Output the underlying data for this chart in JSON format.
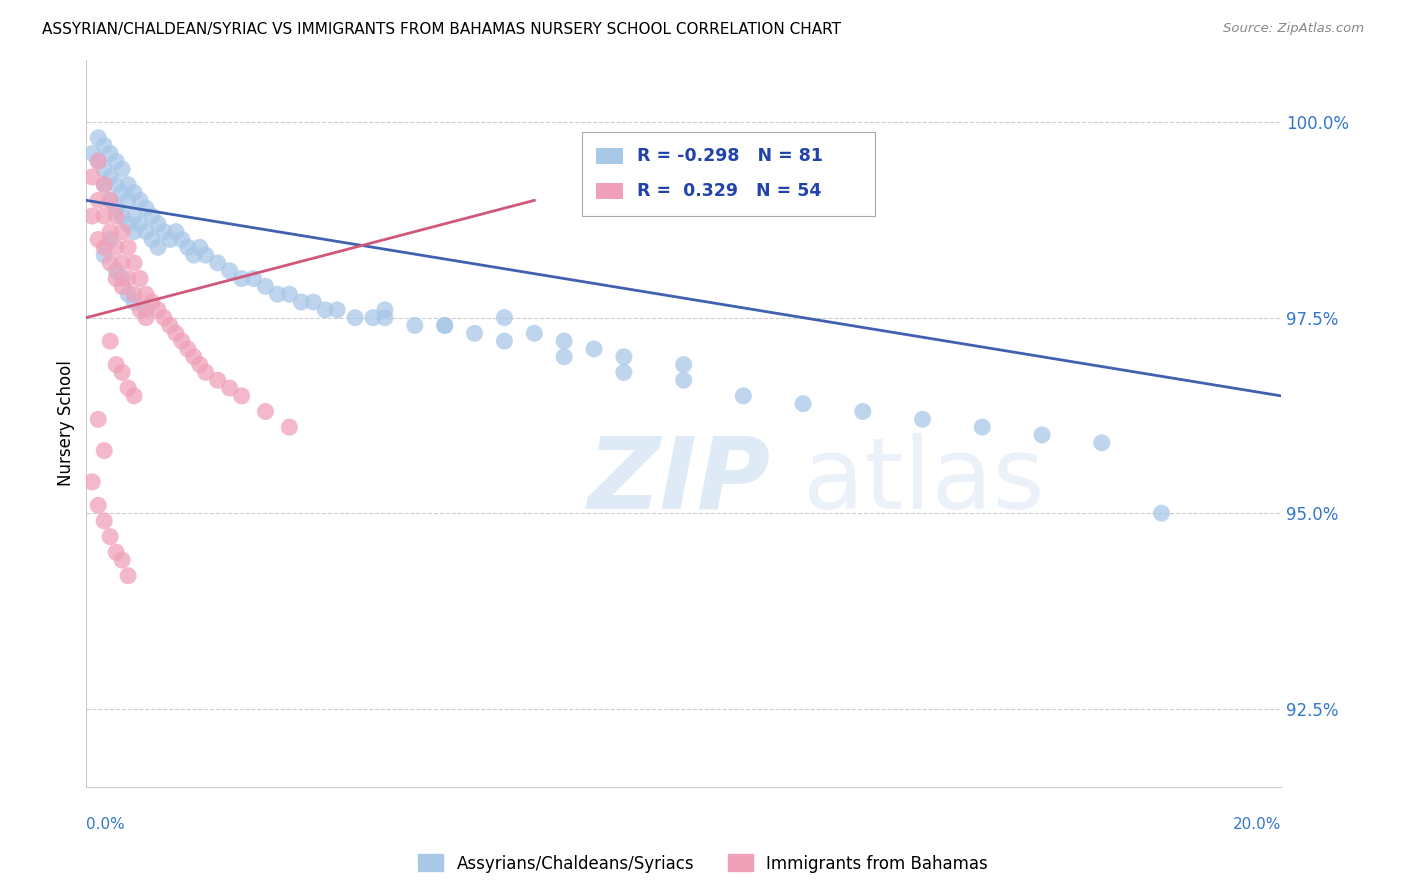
{
  "title": "ASSYRIAN/CHALDEAN/SYRIAC VS IMMIGRANTS FROM BAHAMAS NURSERY SCHOOL CORRELATION CHART",
  "source": "Source: ZipAtlas.com",
  "ylabel": "Nursery School",
  "y_ticks": [
    92.5,
    95.0,
    97.5,
    100.0
  ],
  "x_min": 0.0,
  "x_max": 0.2,
  "y_min": 91.5,
  "y_max": 100.8,
  "blue_R": -0.298,
  "blue_N": 81,
  "pink_R": 0.329,
  "pink_N": 54,
  "blue_color": "#a8c8e8",
  "pink_color": "#f0a0b8",
  "blue_line_color": "#4060b0",
  "pink_line_color": "#d05878",
  "legend_R_color": "#2244aa",
  "blue_line_x0": 0.0,
  "blue_line_y0": 99.0,
  "blue_line_x1": 0.2,
  "blue_line_y1": 96.5,
  "pink_line_x0": 0.0,
  "pink_line_y0": 97.5,
  "pink_line_x1": 0.075,
  "pink_line_y1": 99.0,
  "blue_scatter_x": [
    0.001,
    0.002,
    0.002,
    0.003,
    0.003,
    0.003,
    0.004,
    0.004,
    0.004,
    0.005,
    0.005,
    0.005,
    0.006,
    0.006,
    0.006,
    0.007,
    0.007,
    0.007,
    0.008,
    0.008,
    0.008,
    0.009,
    0.009,
    0.01,
    0.01,
    0.011,
    0.011,
    0.012,
    0.012,
    0.013,
    0.014,
    0.015,
    0.016,
    0.017,
    0.018,
    0.019,
    0.02,
    0.022,
    0.024,
    0.026,
    0.028,
    0.03,
    0.032,
    0.034,
    0.036,
    0.038,
    0.04,
    0.042,
    0.045,
    0.048,
    0.05,
    0.055,
    0.06,
    0.065,
    0.07,
    0.075,
    0.08,
    0.085,
    0.09,
    0.1,
    0.05,
    0.06,
    0.07,
    0.08,
    0.09,
    0.1,
    0.11,
    0.12,
    0.13,
    0.14,
    0.15,
    0.16,
    0.17,
    0.18,
    0.003,
    0.004,
    0.005,
    0.006,
    0.007,
    0.008,
    0.01
  ],
  "blue_scatter_y": [
    99.6,
    99.8,
    99.5,
    99.7,
    99.4,
    99.2,
    99.6,
    99.3,
    99.0,
    99.5,
    99.2,
    98.9,
    99.4,
    99.1,
    98.8,
    99.2,
    99.0,
    98.7,
    99.1,
    98.8,
    98.6,
    99.0,
    98.7,
    98.9,
    98.6,
    98.8,
    98.5,
    98.7,
    98.4,
    98.6,
    98.5,
    98.6,
    98.5,
    98.4,
    98.3,
    98.4,
    98.3,
    98.2,
    98.1,
    98.0,
    98.0,
    97.9,
    97.8,
    97.8,
    97.7,
    97.7,
    97.6,
    97.6,
    97.5,
    97.5,
    97.6,
    97.4,
    97.4,
    97.3,
    97.5,
    97.3,
    97.2,
    97.1,
    97.0,
    96.9,
    97.5,
    97.4,
    97.2,
    97.0,
    96.8,
    96.7,
    96.5,
    96.4,
    96.3,
    96.2,
    96.1,
    96.0,
    95.9,
    95.0,
    98.3,
    98.5,
    98.1,
    98.0,
    97.8,
    97.7,
    97.6
  ],
  "pink_scatter_x": [
    0.001,
    0.001,
    0.002,
    0.002,
    0.002,
    0.003,
    0.003,
    0.003,
    0.004,
    0.004,
    0.004,
    0.005,
    0.005,
    0.005,
    0.006,
    0.006,
    0.006,
    0.007,
    0.007,
    0.008,
    0.008,
    0.009,
    0.009,
    0.01,
    0.01,
    0.011,
    0.012,
    0.013,
    0.014,
    0.015,
    0.016,
    0.017,
    0.018,
    0.019,
    0.02,
    0.022,
    0.024,
    0.026,
    0.03,
    0.034,
    0.004,
    0.005,
    0.006,
    0.007,
    0.008,
    0.002,
    0.003,
    0.001,
    0.002,
    0.003,
    0.004,
    0.005,
    0.006,
    0.007
  ],
  "pink_scatter_y": [
    99.3,
    98.8,
    99.5,
    99.0,
    98.5,
    99.2,
    98.8,
    98.4,
    99.0,
    98.6,
    98.2,
    98.8,
    98.4,
    98.0,
    98.6,
    98.2,
    97.9,
    98.4,
    98.0,
    98.2,
    97.8,
    98.0,
    97.6,
    97.8,
    97.5,
    97.7,
    97.6,
    97.5,
    97.4,
    97.3,
    97.2,
    97.1,
    97.0,
    96.9,
    96.8,
    96.7,
    96.6,
    96.5,
    96.3,
    96.1,
    97.2,
    96.9,
    96.8,
    96.6,
    96.5,
    96.2,
    95.8,
    95.4,
    95.1,
    94.9,
    94.7,
    94.5,
    94.4,
    94.2
  ]
}
